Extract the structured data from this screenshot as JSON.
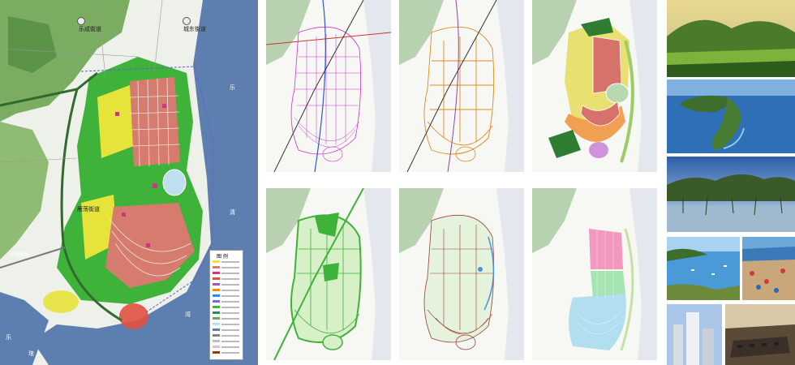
{
  "main_map": {
    "district_labels": {
      "lecheng": "乐成街道",
      "chengdong": "城东街道",
      "yandang": "雁荡街道"
    },
    "sea_labels": [
      "乐",
      "清",
      "湾"
    ],
    "bottom_labels": [
      "乐",
      "琯"
    ],
    "road_label": "环海南路",
    "legend_title": "图 例"
  },
  "colors": {
    "sea": "#5d7fb0",
    "hills": "#6fa45a",
    "green_space": "#3fb23a",
    "residential": "#e6e33a",
    "commercial": "#d67c6e",
    "public": "#c83a78",
    "water_blue": "#bfe0f0"
  }
}
